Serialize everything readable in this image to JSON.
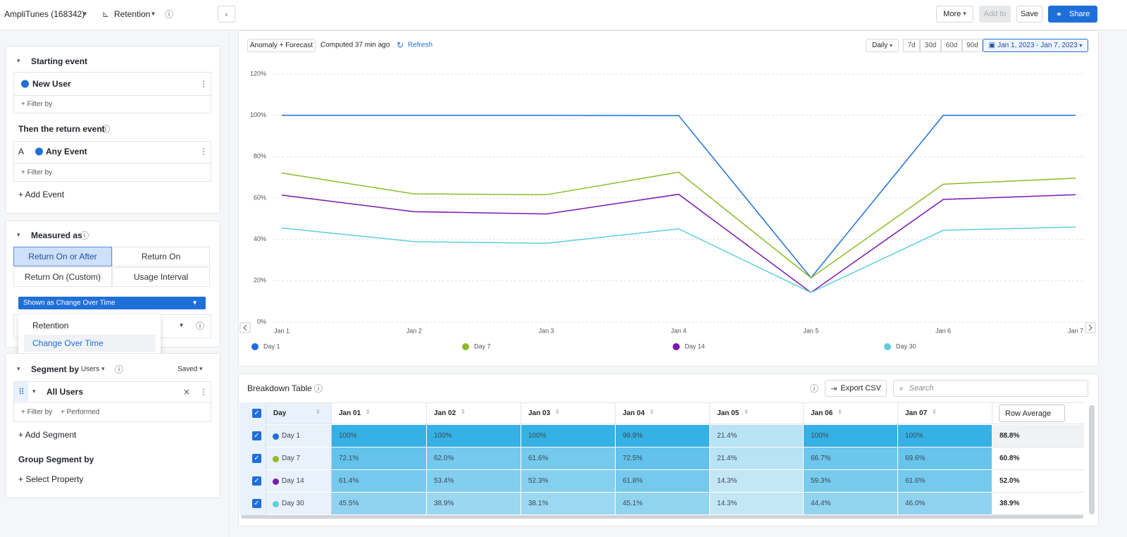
{
  "header": {
    "project": "AmpliTunes (168342)",
    "chart_kind": "Retention",
    "more": "More",
    "add_to": "Add to",
    "save": "Save",
    "share": "Share"
  },
  "sidebar": {
    "starting_event": {
      "title": "Starting event",
      "event": "New User",
      "filter": "+ Filter by"
    },
    "return_event": {
      "title": "Then the return event",
      "letter": "A",
      "event": "Any Event",
      "filter": "+ Filter by",
      "add": "+ Add Event"
    },
    "measured_as": {
      "title": "Measured as",
      "options": [
        "Return On or After",
        "Return On",
        "Return On (Custom)",
        "Usage Interval"
      ],
      "dropdown": "Shown as Change Over Time",
      "menu": [
        "Retention",
        "Change Over Time"
      ]
    },
    "segment": {
      "title": "Segment by",
      "users": "Users",
      "saved": "Saved",
      "name": "All Users",
      "filter": "+ Filter by",
      "performed": "+ Performed",
      "add": "+ Add Segment",
      "group_title": "Group Segment by",
      "select": "+ Select Property"
    }
  },
  "toolbar": {
    "mode": "Anomaly + Forecast",
    "computed": "Computed 37 min ago",
    "refresh": "Refresh",
    "interval": "Daily",
    "ranges": [
      "7d",
      "30d",
      "60d",
      "90d"
    ],
    "date_range": "Jan 1, 2023 - Jan 7, 2023"
  },
  "chart_data": {
    "type": "line",
    "categories": [
      "Jan 1",
      "Jan 2",
      "Jan 3",
      "Jan 4",
      "Jan 5",
      "Jan 6",
      "Jan 7"
    ],
    "series": [
      {
        "name": "Day 1",
        "color": "#1f6fd9",
        "values": [
          100,
          100,
          100,
          99.9,
          21.4,
          100,
          100
        ]
      },
      {
        "name": "Day 7",
        "color": "#8fba2a",
        "values": [
          72.1,
          62.0,
          61.6,
          72.5,
          21.4,
          66.7,
          69.6
        ]
      },
      {
        "name": "Day 14",
        "color": "#7b18b0",
        "values": [
          61.4,
          53.4,
          52.3,
          61.8,
          14.3,
          59.3,
          61.6
        ]
      },
      {
        "name": "Day 30",
        "color": "#5ccfdd",
        "values": [
          45.5,
          38.9,
          38.1,
          45.1,
          14.3,
          44.4,
          46.0
        ]
      }
    ],
    "ylim": [
      0,
      120
    ],
    "yticks": [
      {
        "value": 0,
        "label": "0%"
      },
      {
        "value": 20,
        "label": "20%"
      },
      {
        "value": 40,
        "label": "40%"
      },
      {
        "value": 60,
        "label": "60%"
      },
      {
        "value": 80,
        "label": "80%"
      },
      {
        "value": 100,
        "label": "100%"
      },
      {
        "value": 120,
        "label": "120%"
      }
    ],
    "grid": true
  },
  "table": {
    "title": "Breakdown Table",
    "export": "Export CSV",
    "search": "Search",
    "columns": [
      "Day",
      "Jan 01",
      "Jan 02",
      "Jan 03",
      "Jan 04",
      "Jan 05",
      "Jan 06",
      "Jan 07",
      "Row Average"
    ],
    "rows": [
      [
        "Day 1",
        "100%",
        "100%",
        "100%",
        "99.9%",
        "21.4%",
        "100%",
        "100%",
        "88.8%"
      ],
      [
        "Day 7",
        "72.1%",
        "62.0%",
        "61.6%",
        "72.5%",
        "21.4%",
        "66.7%",
        "69.6%",
        "60.8%"
      ],
      [
        "Day 14",
        "61.4%",
        "53.4%",
        "52.3%",
        "61.8%",
        "14.3%",
        "59.3%",
        "61.6%",
        "52.0%"
      ],
      [
        "Day 30",
        "45.5%",
        "38.9%",
        "38.1%",
        "45.1%",
        "14.3%",
        "44.4%",
        "46.0%",
        "38.9%"
      ]
    ]
  }
}
